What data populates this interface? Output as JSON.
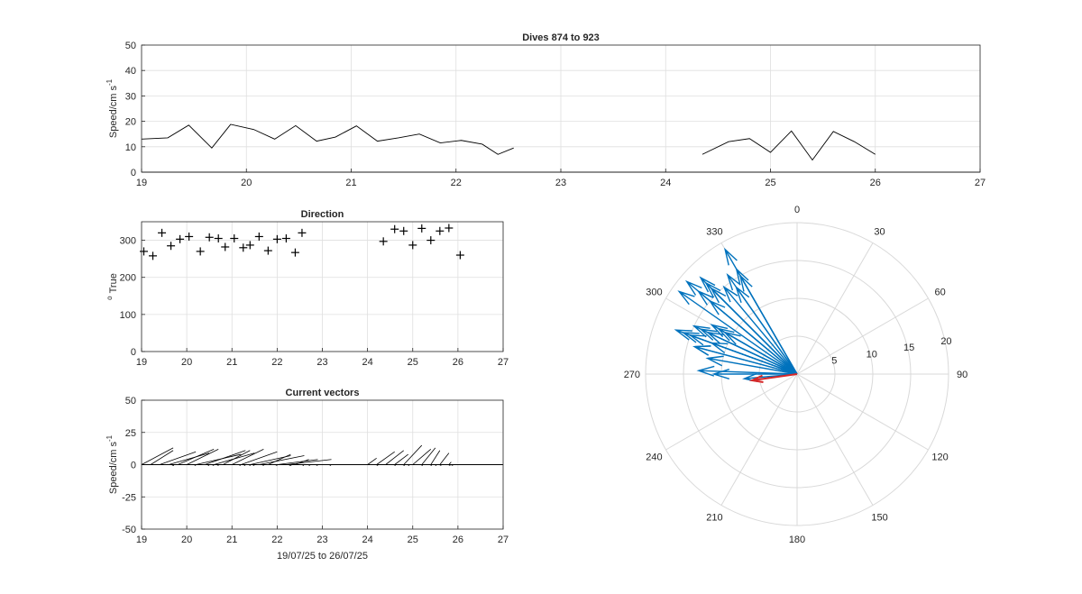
{
  "figure": {
    "date_range_label": "19/07/25 to 26/07/25"
  },
  "chart_data": [
    {
      "id": "speed",
      "type": "line",
      "title": "Dives 874 to 923",
      "xlabel": "",
      "ylabel": "Speed/cm s",
      "ylabel_sup": "-1",
      "xlim": [
        19,
        27
      ],
      "ylim": [
        0,
        50
      ],
      "xticks": [
        19,
        20,
        21,
        22,
        23,
        24,
        25,
        26,
        27
      ],
      "yticks": [
        0,
        10,
        20,
        30,
        40,
        50
      ],
      "grid": true,
      "line_color": "#000000",
      "segments": [
        [
          [
            19.0,
            13.0
          ],
          [
            19.25,
            13.5
          ],
          [
            19.45,
            18.5
          ],
          [
            19.67,
            9.5
          ],
          [
            19.85,
            18.8
          ],
          [
            20.07,
            16.8
          ],
          [
            20.27,
            13.0
          ],
          [
            20.47,
            18.3
          ],
          [
            20.67,
            12.2
          ],
          [
            20.85,
            13.8
          ],
          [
            21.05,
            18.2
          ],
          [
            21.25,
            12.2
          ],
          [
            21.45,
            13.5
          ],
          [
            21.65,
            15.0
          ],
          [
            21.85,
            11.5
          ],
          [
            22.05,
            12.5
          ],
          [
            22.25,
            11.0
          ],
          [
            22.4,
            7.0
          ],
          [
            22.55,
            9.5
          ]
        ],
        [
          [
            24.35,
            7.0
          ],
          [
            24.6,
            12.0
          ],
          [
            24.8,
            13.2
          ],
          [
            25.0,
            7.8
          ],
          [
            25.2,
            16.2
          ],
          [
            25.4,
            4.8
          ],
          [
            25.6,
            16.0
          ],
          [
            25.8,
            12.0
          ],
          [
            26.0,
            7.0
          ]
        ]
      ]
    },
    {
      "id": "direction",
      "type": "scatter",
      "title": "Direction",
      "xlabel": "",
      "ylabel": "True",
      "ylabel_prefix": "o",
      "xlim": [
        19,
        27
      ],
      "ylim": [
        0,
        350
      ],
      "xticks": [
        19,
        20,
        21,
        22,
        23,
        24,
        25,
        26,
        27
      ],
      "yticks": [
        0,
        100,
        200,
        300
      ],
      "grid": true,
      "marker": "+",
      "points": [
        [
          19.05,
          270
        ],
        [
          19.25,
          258
        ],
        [
          19.45,
          320
        ],
        [
          19.65,
          285
        ],
        [
          19.85,
          303
        ],
        [
          20.05,
          310
        ],
        [
          20.3,
          270
        ],
        [
          20.5,
          308
        ],
        [
          20.7,
          305
        ],
        [
          20.85,
          282
        ],
        [
          21.05,
          305
        ],
        [
          21.25,
          280
        ],
        [
          21.4,
          287
        ],
        [
          21.6,
          310
        ],
        [
          21.8,
          272
        ],
        [
          22.0,
          303
        ],
        [
          22.2,
          305
        ],
        [
          22.4,
          267
        ],
        [
          22.55,
          320
        ],
        [
          24.35,
          297
        ],
        [
          24.6,
          330
        ],
        [
          24.8,
          325
        ],
        [
          25.0,
          287
        ],
        [
          25.2,
          332
        ],
        [
          25.4,
          300
        ],
        [
          25.6,
          325
        ],
        [
          25.8,
          333
        ],
        [
          26.05,
          260
        ]
      ]
    },
    {
      "id": "vectors",
      "type": "line",
      "title": "Current vectors",
      "xlabel": "19/07/25 to 26/07/25",
      "ylabel": "Speed/cm s",
      "ylabel_sup": "-1",
      "xlim": [
        19,
        27
      ],
      "ylim": [
        -50,
        50
      ],
      "xticks": [
        19,
        20,
        21,
        22,
        23,
        24,
        25,
        26,
        27
      ],
      "yticks": [
        -50,
        -25,
        0,
        25,
        50
      ],
      "grid": true,
      "stick_origins_x": [
        19.0,
        19.2,
        19.4,
        19.6,
        19.8,
        20.0,
        20.2,
        20.4,
        20.6,
        20.8,
        21.0,
        21.2,
        21.4,
        21.6,
        21.8,
        22.0,
        22.2,
        22.4,
        24.0,
        24.2,
        24.4,
        24.6,
        24.8,
        25.0,
        25.2,
        25.4,
        25.6,
        25.8
      ],
      "vectors": [
        [
          -0.7,
          13
        ],
        [
          -0.5,
          11
        ],
        [
          -0.8,
          10
        ],
        [
          -0.9,
          9
        ],
        [
          -0.8,
          12
        ],
        [
          -0.7,
          12
        ],
        [
          -1.0,
          8
        ],
        [
          -0.9,
          11
        ],
        [
          -0.9,
          9
        ],
        [
          -0.6,
          11
        ],
        [
          -0.7,
          12
        ],
        [
          -0.8,
          10
        ],
        [
          -0.9,
          7
        ],
        [
          -1.0,
          7
        ],
        [
          -0.5,
          8
        ],
        [
          -0.9,
          4
        ],
        [
          -1.0,
          4
        ],
        [
          -0.3,
          4
        ],
        [
          -0.2,
          5
        ],
        [
          -0.4,
          10
        ],
        [
          -0.4,
          11
        ],
        [
          -0.3,
          8
        ],
        [
          -0.4,
          15
        ],
        [
          -0.4,
          12
        ],
        [
          -0.3,
          13
        ],
        [
          -0.2,
          11
        ],
        [
          -0.2,
          9
        ],
        [
          -0.05,
          2
        ]
      ]
    },
    {
      "id": "compass",
      "type": "polar",
      "title": "",
      "theta_zero": "top",
      "theta_direction": "clockwise",
      "theta_ticks": [
        0,
        30,
        60,
        90,
        120,
        150,
        180,
        210,
        240,
        270,
        300,
        330
      ],
      "r_ticks": [
        5,
        10,
        15,
        20
      ],
      "rlim": [
        0,
        20
      ],
      "grid": true,
      "vector_color": "#0072BD",
      "mean_vector_color": "#D62728",
      "vectors": [
        [
          300,
          13
        ],
        [
          330,
          19
        ],
        [
          290,
          17
        ],
        [
          320,
          15
        ],
        [
          305,
          19
        ],
        [
          310,
          17
        ],
        [
          285,
          14
        ],
        [
          315,
          18
        ],
        [
          300,
          12
        ],
        [
          295,
          15
        ],
        [
          310,
          19
        ],
        [
          290,
          16
        ],
        [
          295,
          14
        ],
        [
          315,
          16
        ],
        [
          285,
          14
        ],
        [
          310,
          15
        ],
        [
          290,
          15
        ],
        [
          270,
          11
        ],
        [
          325,
          14
        ],
        [
          290,
          12
        ],
        [
          330,
          16
        ],
        [
          315,
          17
        ],
        [
          295,
          13
        ],
        [
          330,
          15
        ],
        [
          300,
          11
        ],
        [
          280,
          12
        ],
        [
          325,
          16
        ],
        [
          272,
          13
        ],
        [
          265,
          7
        ]
      ],
      "mean_vector": [
        262,
        6
      ]
    }
  ]
}
